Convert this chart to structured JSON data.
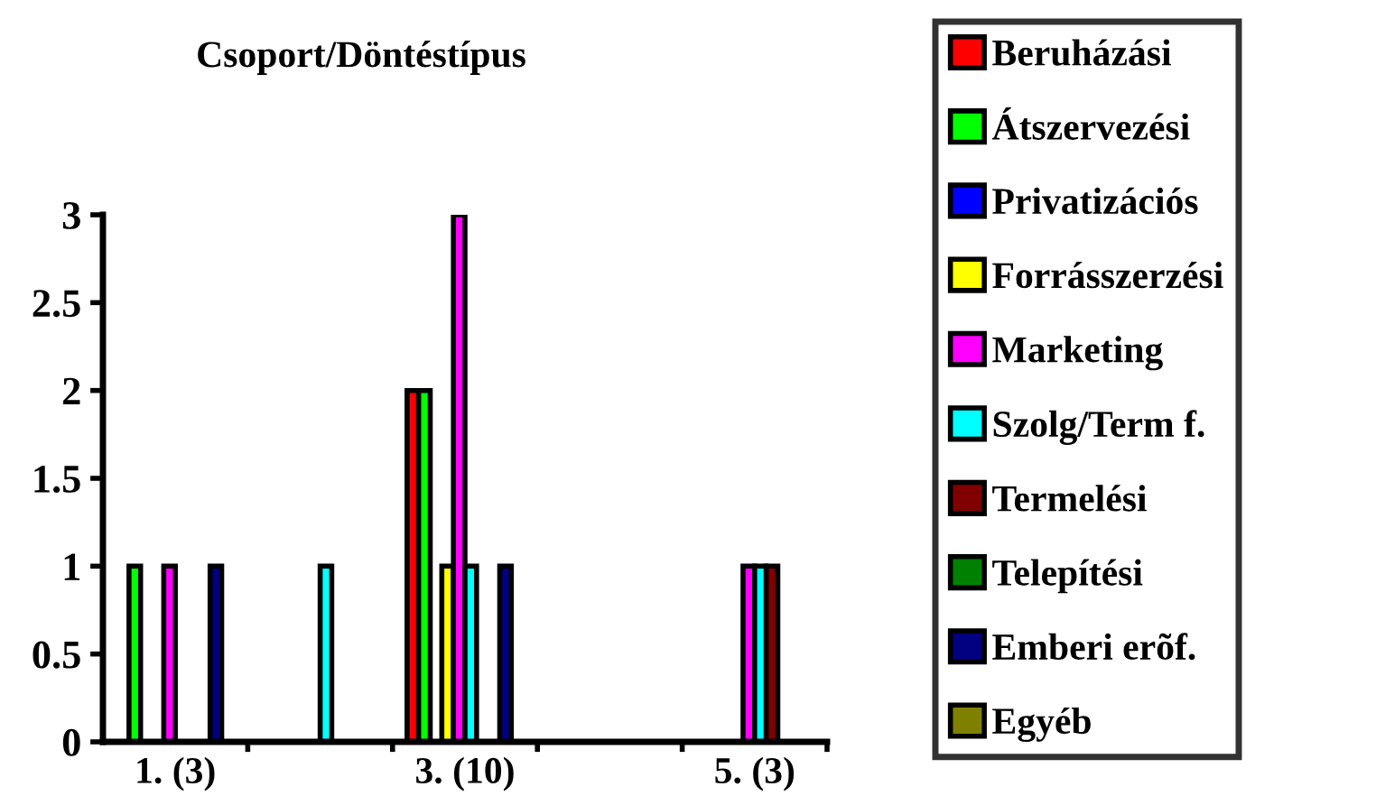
{
  "chart_data": {
    "type": "bar",
    "title": "Csoport/Döntéstípus",
    "categories": [
      "1. (3)",
      null,
      "3. (10)",
      null,
      "5. (3)"
    ],
    "series": [
      {
        "name": "Beruházási",
        "color": "#ff0000",
        "values": [
          null,
          null,
          2,
          null,
          null
        ]
      },
      {
        "name": "Átszervezési",
        "color": "#00ff00",
        "values": [
          1,
          null,
          2,
          null,
          null
        ]
      },
      {
        "name": "Privatizációs",
        "color": "#0000ff",
        "values": [
          null,
          null,
          null,
          null,
          null
        ]
      },
      {
        "name": "Forrásszerzési",
        "color": "#ffff00",
        "values": [
          null,
          null,
          1,
          null,
          null
        ]
      },
      {
        "name": "Marketing",
        "color": "#ff00ff",
        "values": [
          1,
          null,
          3,
          null,
          1
        ]
      },
      {
        "name": "Szolg/Term f.",
        "color": "#00ffff",
        "values": [
          null,
          1,
          1,
          null,
          1
        ]
      },
      {
        "name": "Termelési",
        "color": "#800000",
        "values": [
          null,
          null,
          null,
          null,
          1
        ]
      },
      {
        "name": "Telepítési",
        "color": "#008000",
        "values": [
          null,
          null,
          null,
          null,
          null
        ]
      },
      {
        "name": "Emberi erõf.",
        "color": "#000080",
        "values": [
          1,
          null,
          1,
          null,
          null
        ]
      },
      {
        "name": "Egyéb",
        "color": "#808000",
        "values": [
          null,
          null,
          null,
          null,
          null
        ]
      }
    ],
    "ylim": [
      0,
      3
    ],
    "yticks": [
      0,
      0.5,
      1,
      1.5,
      2,
      2.5,
      3
    ],
    "grid": false,
    "legend": "right"
  }
}
